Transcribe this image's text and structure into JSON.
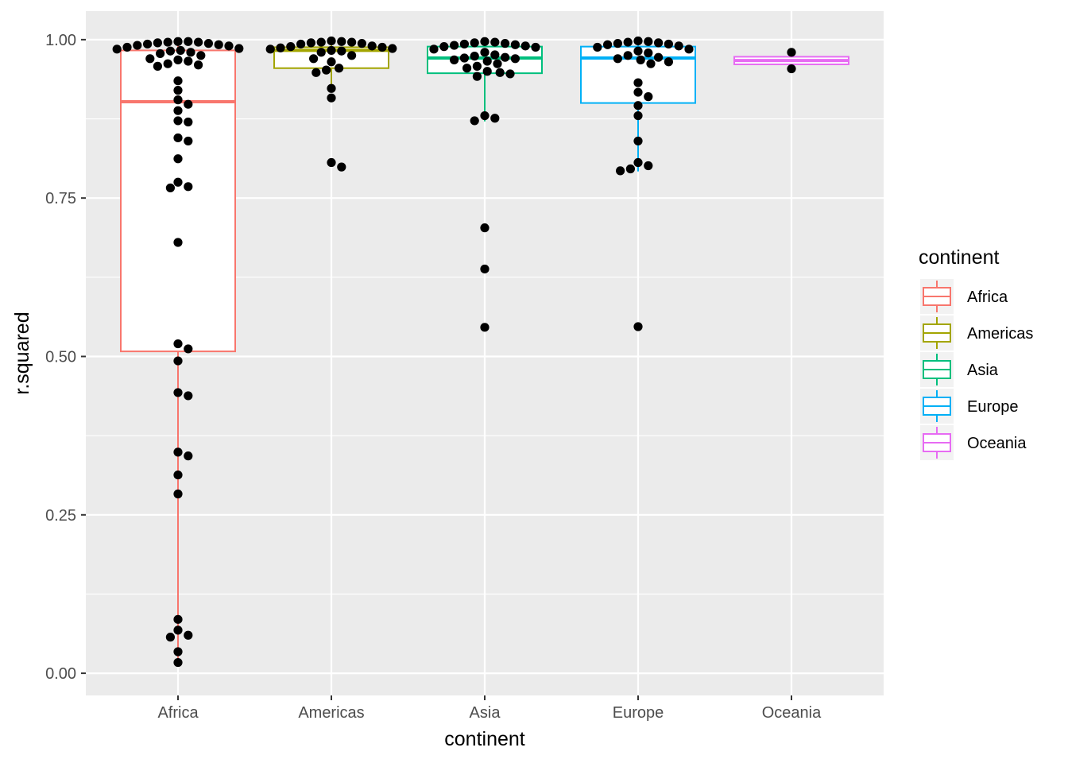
{
  "chart_data": {
    "type": "boxplot-with-points",
    "xlabel": "continent",
    "ylabel": "r.squared",
    "ylim": [
      -0.035,
      1.045
    ],
    "y_ticks": [
      0.0,
      0.25,
      0.5,
      0.75,
      1.0
    ],
    "y_tick_labels": [
      "0.00",
      "0.25",
      "0.50",
      "0.75",
      "1.00"
    ],
    "grid": true,
    "legend": {
      "title": "continent",
      "placement": "right"
    },
    "colors": {
      "Africa": "#F8766D",
      "Americas": "#A3A500",
      "Asia": "#00BF7D",
      "Europe": "#00B0F6",
      "Oceania": "#E76BF3",
      "points": "#000000",
      "panel": "#EBEBEB",
      "grid": "#FFFFFF"
    },
    "categories": [
      "Africa",
      "Americas",
      "Asia",
      "Europe",
      "Oceania"
    ],
    "series": [
      {
        "name": "Africa",
        "box": {
          "q1": 0.508,
          "median": 0.902,
          "q3": 0.983,
          "whisker_low": 0.017,
          "whisker_high": 0.997
        },
        "points": [
          0.997,
          0.996,
          0.995,
          0.997,
          0.996,
          0.994,
          0.993,
          0.992,
          0.991,
          0.99,
          0.988,
          0.986,
          0.985,
          0.983,
          0.982,
          0.98,
          0.978,
          0.975,
          0.97,
          0.968,
          0.966,
          0.962,
          0.96,
          0.958,
          0.935,
          0.92,
          0.905,
          0.898,
          0.888,
          0.872,
          0.87,
          0.845,
          0.84,
          0.812,
          0.775,
          0.768,
          0.766,
          0.68,
          0.52,
          0.512,
          0.493,
          0.443,
          0.438,
          0.349,
          0.343,
          0.313,
          0.283,
          0.085,
          0.068,
          0.06,
          0.057,
          0.034,
          0.017
        ]
      },
      {
        "name": "Americas",
        "box": {
          "q1": 0.955,
          "median": 0.983,
          "q3": 0.988,
          "whisker_low": 0.925,
          "whisker_high": 0.998
        },
        "points": [
          0.998,
          0.997,
          0.996,
          0.996,
          0.995,
          0.994,
          0.993,
          0.99,
          0.989,
          0.988,
          0.987,
          0.986,
          0.985,
          0.983,
          0.982,
          0.98,
          0.975,
          0.97,
          0.965,
          0.955,
          0.952,
          0.948,
          0.923,
          0.908,
          0.806,
          0.799
        ]
      },
      {
        "name": "Asia",
        "box": {
          "q1": 0.947,
          "median": 0.971,
          "q3": 0.989,
          "whisker_low": 0.871,
          "whisker_high": 0.997
        },
        "points": [
          0.997,
          0.996,
          0.995,
          0.994,
          0.993,
          0.992,
          0.991,
          0.99,
          0.989,
          0.988,
          0.985,
          0.98,
          0.976,
          0.974,
          0.972,
          0.971,
          0.97,
          0.968,
          0.966,
          0.962,
          0.958,
          0.955,
          0.95,
          0.948,
          0.946,
          0.942,
          0.88,
          0.876,
          0.872,
          0.703,
          0.638,
          0.546
        ]
      },
      {
        "name": "Europe",
        "box": {
          "q1": 0.9,
          "median": 0.971,
          "q3": 0.989,
          "whisker_low": 0.792,
          "whisker_high": 0.998
        },
        "points": [
          0.998,
          0.997,
          0.996,
          0.995,
          0.994,
          0.993,
          0.992,
          0.99,
          0.988,
          0.985,
          0.982,
          0.979,
          0.975,
          0.972,
          0.97,
          0.968,
          0.965,
          0.962,
          0.932,
          0.917,
          0.91,
          0.896,
          0.88,
          0.84,
          0.806,
          0.801,
          0.796,
          0.793,
          0.547
        ]
      },
      {
        "name": "Oceania",
        "box": {
          "q1": 0.961,
          "median": 0.967,
          "q3": 0.973,
          "whisker_low": 0.954,
          "whisker_high": 0.98
        },
        "points": [
          0.98,
          0.954
        ]
      }
    ]
  }
}
